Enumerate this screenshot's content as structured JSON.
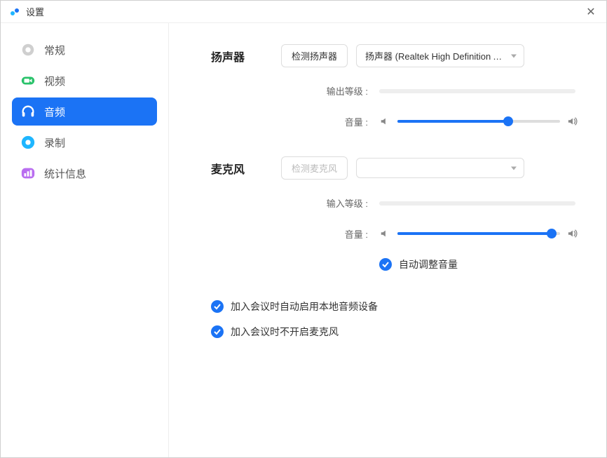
{
  "window": {
    "title": "设置"
  },
  "sidebar": {
    "items": [
      {
        "label": "常规",
        "icon": "gear",
        "color": "#cfcfcf"
      },
      {
        "label": "视频",
        "icon": "video",
        "color": "#29c26a"
      },
      {
        "label": "音频",
        "icon": "headphone",
        "color": "#ffffff",
        "active": true
      },
      {
        "label": "录制",
        "icon": "record",
        "color": "#1fb6ff"
      },
      {
        "label": "统计信息",
        "icon": "stats",
        "color": "#b96ef0"
      }
    ]
  },
  "speaker": {
    "section_label": "扬声器",
    "test_btn": "检测扬声器",
    "dropdown_value": "扬声器 (Realtek High Definition Aud...",
    "output_level_label": "输出等级 :",
    "volume_label": "音量 :",
    "volume_percent": 68
  },
  "mic": {
    "section_label": "麦克风",
    "test_btn": "检测麦克风",
    "dropdown_value": "",
    "input_level_label": "输入等级 :",
    "volume_label": "音量 :",
    "volume_percent": 95,
    "auto_adjust_label": "自动调整音量"
  },
  "options": {
    "opt1": "加入会议时自动启用本地音频设备",
    "opt2": "加入会议时不开启麦克风"
  },
  "colors": {
    "accent": "#1b73f5",
    "track_bg": "#eeeeee",
    "border": "#dddddd"
  }
}
